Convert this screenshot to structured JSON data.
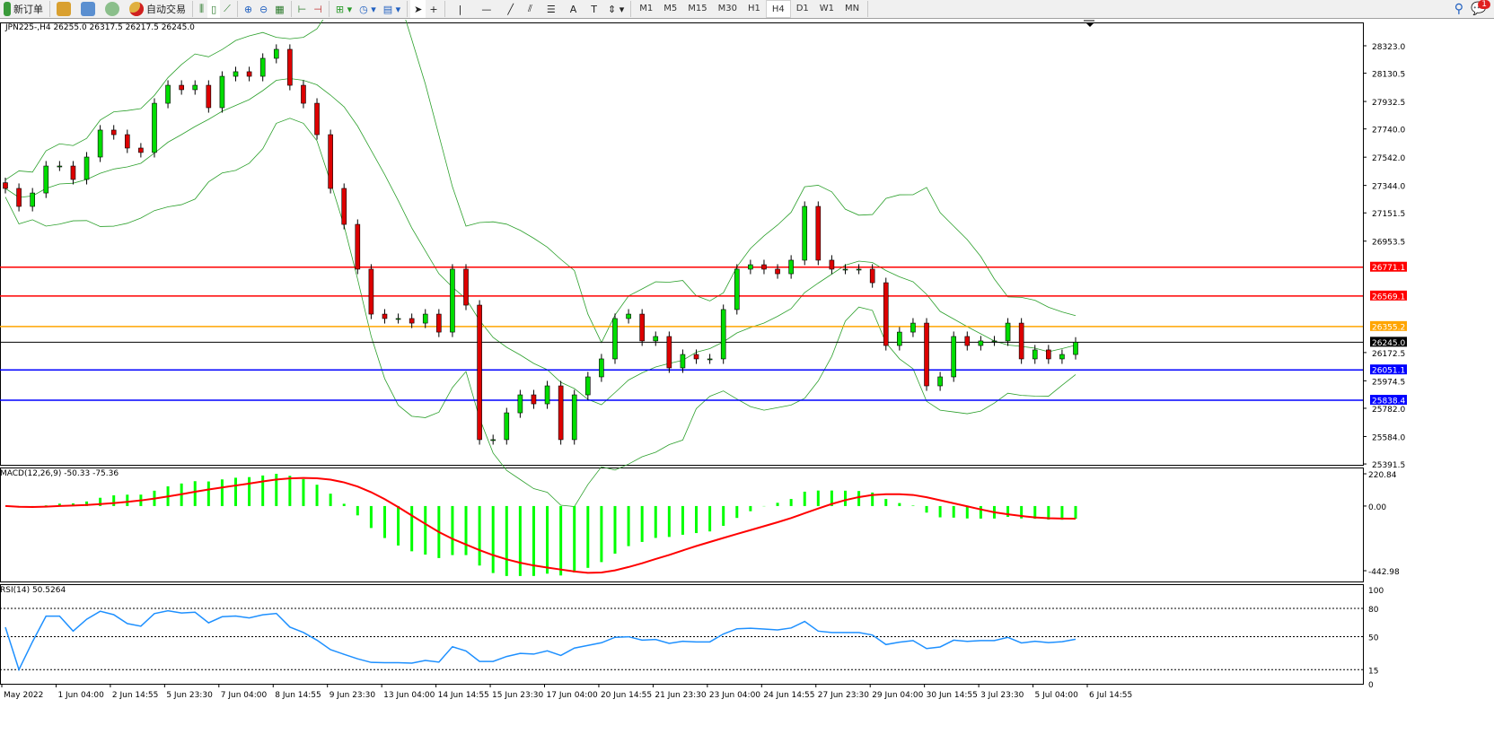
{
  "toolbar": {
    "new_order": "新订单",
    "auto_trading": "自动交易",
    "icons": [
      "new-order-icon",
      "market-watch-icon",
      "navigator-icon",
      "signals-icon",
      "auto-trading-icon",
      "bar-chart-icon",
      "candlestick-icon",
      "line-chart-icon",
      "zoom-in-icon",
      "zoom-out-icon",
      "tile-windows-icon",
      "auto-scroll-icon",
      "chart-shift-icon",
      "indicators-icon",
      "periods-icon",
      "templates-icon",
      "cursor-icon",
      "crosshair-icon",
      "vertical-line-icon",
      "horizontal-line-icon",
      "trendline-icon",
      "fibonacci-icon",
      "fibonacci-fan-icon",
      "text-icon",
      "text-label-icon",
      "arrows-icon"
    ],
    "text_tool": "A",
    "timeframes": [
      "M1",
      "M5",
      "M15",
      "M30",
      "H1",
      "H4",
      "D1",
      "W1",
      "MN"
    ],
    "active_timeframe": "H4",
    "notification_count": "1"
  },
  "chart": {
    "header": "JPN225-,H4  26255.0 26317.5 26217.5 26245.0",
    "macd_label": "MACD(12,26,9) -50.33 -75.36",
    "rsi_label": "RSI(14) 50.5264"
  },
  "chart_data": {
    "type": "candlestick",
    "symbol": "JPN225-",
    "timeframe": "H4",
    "bullish_color": "#00dd00",
    "bearish_color": "#dd0000",
    "close": [
      27323,
      27197,
      27291,
      27480,
      27480,
      27386,
      27543,
      27732,
      27700,
      27606,
      27575,
      27920,
      28046,
      28015,
      28046,
      27889,
      28109,
      28141,
      28109,
      28235,
      28298,
      28046,
      27920,
      27700,
      27323,
      27071,
      26757,
      26442,
      26411,
      26411,
      26379,
      26442,
      26316,
      26757,
      26505,
      25562,
      25562,
      25750,
      25876,
      25813,
      25939,
      25562,
      25876,
      26002,
      26128,
      26411,
      26442,
      26254,
      26285,
      26065,
      26159,
      26128,
      26128,
      26474,
      26757,
      26788,
      26757,
      26725,
      26820,
      27197,
      26820,
      26757,
      26757,
      26757,
      26662,
      26222,
      26316,
      26379,
      25939,
      26002,
      26285,
      26222,
      26254,
      26254,
      26379,
      26128,
      26191,
      26128,
      26159,
      26245
    ],
    "price_axis_ticks": [
      "28323.0",
      "28130.5",
      "27932.5",
      "27740.0",
      "27542.0",
      "27344.0",
      "27151.5",
      "26953.5",
      "26172.5",
      "25974.5",
      "25782.0",
      "25584.0",
      "25391.5"
    ],
    "price_range": [
      25391.5,
      28323.0
    ],
    "levels": [
      {
        "price": "26771.1",
        "color": "#ff0000"
      },
      {
        "price": "26569.1",
        "color": "#ff0000"
      },
      {
        "price": "26355.2",
        "color": "#ffa500"
      },
      {
        "price": "26245.0",
        "color": "#000000"
      },
      {
        "price": "26051.1",
        "color": "#0000ff"
      },
      {
        "price": "25838.4",
        "color": "#0000ff"
      }
    ],
    "bollinger_color": "#2ca02c",
    "macd": {
      "ticks": [
        "220.84",
        "0.00",
        "-442.98"
      ],
      "range": [
        -442.98,
        220.84
      ],
      "histogram_color": "#00ff00",
      "signal_color": "#ff0000"
    },
    "rsi": {
      "ticks": [
        "100",
        "80",
        "50",
        "15",
        "0"
      ],
      "levels": [
        80,
        50,
        15
      ],
      "color": "#1e90ff"
    },
    "time_labels": [
      "May 2022",
      "1 Jun 04:00",
      "2 Jun 14:55",
      "5 Jun 23:30",
      "7 Jun 04:00",
      "8 Jun 14:55",
      "9 Jun 23:30",
      "13 Jun 04:00",
      "14 Jun 14:55",
      "15 Jun 23:30",
      "17 Jun 04:00",
      "20 Jun 14:55",
      "21 Jun 23:30",
      "23 Jun 04:00",
      "24 Jun 14:55",
      "27 Jun 23:30",
      "29 Jun 04:00",
      "30 Jun 14:55",
      "3 Jul 23:30",
      "5 Jul 04:00",
      "6 Jul 14:55"
    ]
  }
}
